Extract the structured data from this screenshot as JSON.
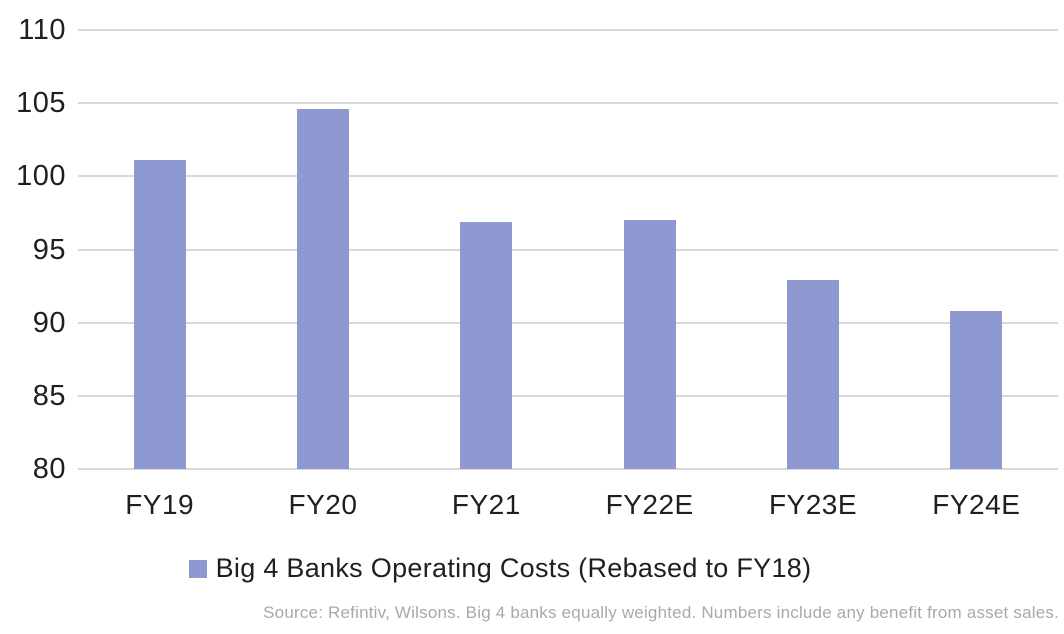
{
  "chart_data": {
    "type": "bar",
    "categories": [
      "FY19",
      "FY20",
      "FY21",
      "FY22E",
      "FY23E",
      "FY24E"
    ],
    "values": [
      101.1,
      104.6,
      96.9,
      97.0,
      92.9,
      90.8
    ],
    "title": "",
    "xlabel": "",
    "ylabel": "",
    "ylim": [
      80,
      110
    ],
    "yticks": [
      80,
      85,
      90,
      95,
      100,
      105,
      110
    ],
    "grid": true,
    "legend_position": "bottom",
    "legend_label": "Big 4 Banks Operating Costs (Rebased to FY18)",
    "bar_color": "#8e99d1",
    "gridline_color": "#d9d9d9",
    "text_color": "#1f1f1f",
    "source_color": "#a9a9a9"
  },
  "footer": {
    "source_note": "Source: Refintiv, Wilsons. Big 4 banks equally weighted. Numbers include any benefit from asset sales."
  }
}
